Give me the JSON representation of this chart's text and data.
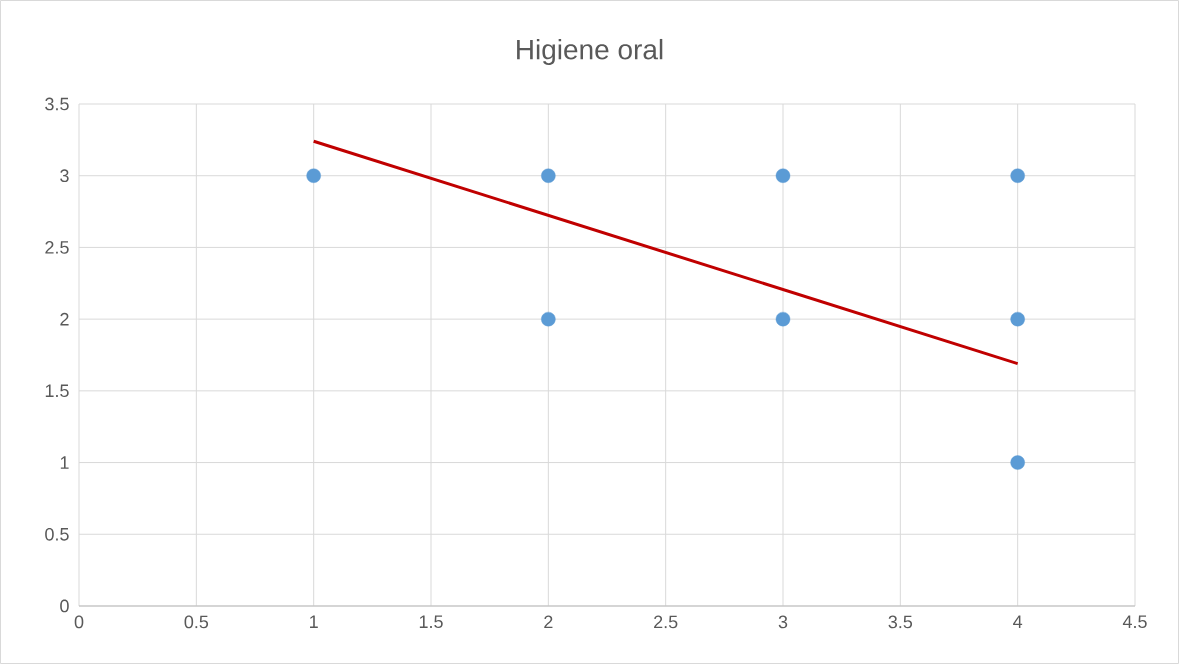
{
  "chart_data": {
    "type": "scatter",
    "title": "Higiene oral",
    "series": [
      {
        "color": "#5b9bd5",
        "x": [
          1,
          2,
          2,
          3,
          3,
          4,
          4,
          4
        ],
        "values": [
          3,
          3,
          2,
          3,
          2,
          3,
          2,
          1
        ]
      },
      {
        "type": "line",
        "marker": "none",
        "color": "#c00000",
        "x": [
          1,
          4
        ],
        "values": [
          3.24,
          1.69
        ]
      }
    ],
    "xlim": [
      0,
      4.5
    ],
    "xticks": [
      0,
      0.5,
      1,
      1.5,
      2,
      2.5,
      3,
      3.5,
      4,
      4.5
    ],
    "ylim": [
      0,
      3.5
    ],
    "yticks": [
      0,
      0.5,
      1,
      1.5,
      2,
      2.5,
      3,
      3.5
    ],
    "marker": "circle",
    "grid": true
  }
}
